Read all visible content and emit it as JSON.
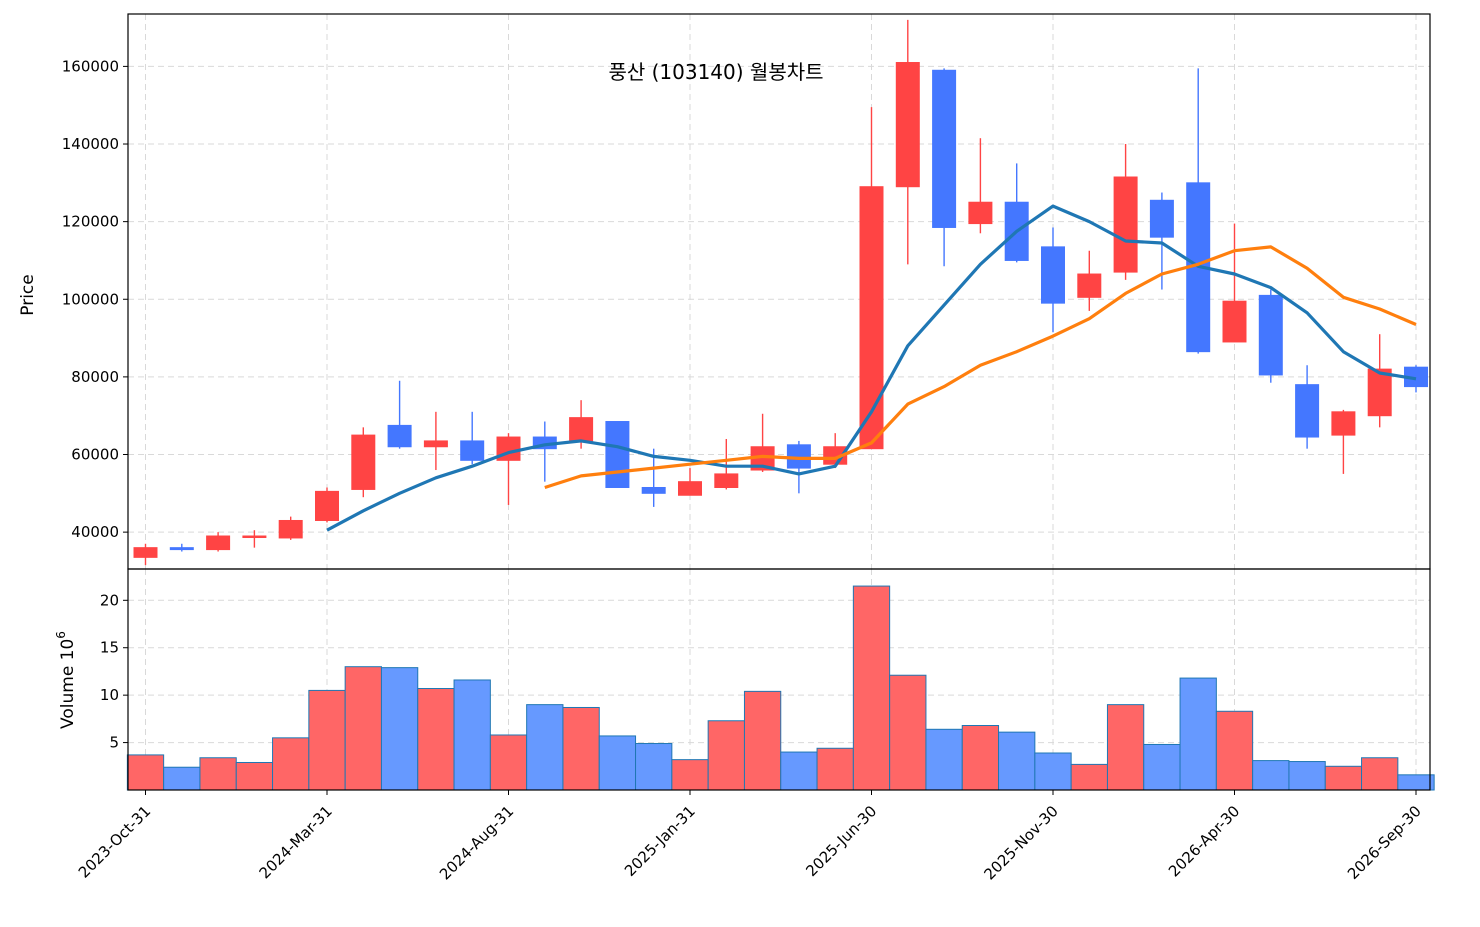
{
  "chart_data": {
    "type": "candlestick",
    "title": "풍산 (103140) 월봉차트",
    "ylabel": "Price",
    "volume_label": "Volume",
    "volume_unit": "10",
    "volume_unit_exp": "6",
    "colors": {
      "up": "#ff4444",
      "down": "#4477ff",
      "vol_up": "#ff6666",
      "vol_down": "#6699ff",
      "ma_short": "#1f77b4",
      "ma_long": "#ff7f0e"
    },
    "x_tick_labels": [
      "2023-Oct-31",
      "2024-Mar-31",
      "2024-Aug-31",
      "2025-Jan-31",
      "2025-Jun-30",
      "2025-Nov-30",
      "2026-Apr-30",
      "2026-Sep-30"
    ],
    "x_tick_indices": [
      0,
      5,
      10,
      15,
      20,
      25,
      30,
      35
    ],
    "y_ticks": [
      40000,
      60000,
      80000,
      100000,
      120000,
      140000,
      160000
    ],
    "ylim": [
      30500,
      173500
    ],
    "volume_ticks": [
      5,
      10,
      15,
      20
    ],
    "volume_ylim": [
      0,
      23.3
    ],
    "grid": true,
    "candles": [
      {
        "o": 33500,
        "h": 37000,
        "l": 31500,
        "c": 36000
      },
      {
        "o": 36000,
        "h": 37000,
        "l": 35000,
        "c": 35500
      },
      {
        "o": 35500,
        "h": 40000,
        "l": 35000,
        "c": 39000
      },
      {
        "o": 39000,
        "h": 40500,
        "l": 36000,
        "c": 39000
      },
      {
        "o": 38500,
        "h": 44000,
        "l": 38000,
        "c": 43000
      },
      {
        "o": 43000,
        "h": 51500,
        "l": 42500,
        "c": 50500
      },
      {
        "o": 51000,
        "h": 67000,
        "l": 49000,
        "c": 65000
      },
      {
        "o": 67500,
        "h": 79000,
        "l": 61500,
        "c": 62000
      },
      {
        "o": 62000,
        "h": 71000,
        "l": 56000,
        "c": 63500
      },
      {
        "o": 63500,
        "h": 71000,
        "l": 57500,
        "c": 58500
      },
      {
        "o": 58500,
        "h": 65500,
        "l": 47000,
        "c": 64500
      },
      {
        "o": 64500,
        "h": 68500,
        "l": 53000,
        "c": 61500
      },
      {
        "o": 63500,
        "h": 74000,
        "l": 61500,
        "c": 69500
      },
      {
        "o": 68500,
        "h": 68500,
        "l": 51500,
        "c": 51500
      },
      {
        "o": 51500,
        "h": 61500,
        "l": 46500,
        "c": 50000
      },
      {
        "o": 49500,
        "h": 56500,
        "l": 49500,
        "c": 53000
      },
      {
        "o": 51500,
        "h": 64000,
        "l": 51000,
        "c": 55000
      },
      {
        "o": 56000,
        "h": 70500,
        "l": 55500,
        "c": 62000
      },
      {
        "o": 62500,
        "h": 63500,
        "l": 50000,
        "c": 56500
      },
      {
        "o": 57500,
        "h": 65500,
        "l": 56500,
        "c": 62000
      },
      {
        "o": 61500,
        "h": 149500,
        "l": 61500,
        "c": 129000
      },
      {
        "o": 129000,
        "h": 172000,
        "l": 109000,
        "c": 161000
      },
      {
        "o": 159000,
        "h": 159500,
        "l": 108500,
        "c": 118500
      },
      {
        "o": 119500,
        "h": 141500,
        "l": 117000,
        "c": 125000
      },
      {
        "o": 125000,
        "h": 135000,
        "l": 109500,
        "c": 110000
      },
      {
        "o": 113500,
        "h": 118500,
        "l": 91500,
        "c": 99000
      },
      {
        "o": 100500,
        "h": 112500,
        "l": 97000,
        "c": 106500
      },
      {
        "o": 107000,
        "h": 140000,
        "l": 105000,
        "c": 131500
      },
      {
        "o": 125500,
        "h": 127500,
        "l": 102500,
        "c": 116000
      },
      {
        "o": 130000,
        "h": 159500,
        "l": 86000,
        "c": 86500
      },
      {
        "o": 89000,
        "h": 119500,
        "l": 89000,
        "c": 99500
      },
      {
        "o": 101000,
        "h": 102500,
        "l": 78500,
        "c": 80500
      },
      {
        "o": 78000,
        "h": 83000,
        "l": 61500,
        "c": 64500
      },
      {
        "o": 65000,
        "h": 71500,
        "l": 55000,
        "c": 71000
      },
      {
        "o": 70000,
        "h": 91000,
        "l": 67000,
        "c": 82000
      },
      {
        "o": 82500,
        "h": 83000,
        "l": 76000,
        "c": 77500
      }
    ],
    "volume": [
      3.7,
      2.4,
      3.4,
      2.9,
      5.5,
      10.5,
      13.0,
      12.9,
      10.7,
      11.6,
      5.8,
      9.0,
      8.7,
      5.7,
      4.9,
      3.2,
      7.3,
      10.4,
      4.0,
      4.4,
      21.5,
      12.1,
      6.4,
      6.8,
      6.1,
      3.9,
      2.7,
      9.0,
      4.8,
      11.8,
      8.3,
      3.1,
      3.0,
      2.5,
      3.4,
      1.6
    ],
    "series": [
      {
        "key": "ma_short",
        "start": 5,
        "values": [
          40500,
          45500,
          50000,
          54000,
          57000,
          60500,
          62500,
          63500,
          62000,
          59500,
          58500,
          57000,
          57000,
          55000,
          57000,
          71000,
          88000,
          98500,
          109000,
          117500,
          124000,
          120000,
          115000,
          114500,
          108500,
          106500,
          103000,
          96500,
          86500,
          81000,
          79500
        ]
      },
      {
        "key": "ma_long",
        "start": 11,
        "values": [
          51500,
          54500,
          55500,
          56500,
          57500,
          58500,
          59500,
          59000,
          59000,
          63000,
          73000,
          77500,
          83000,
          86500,
          90500,
          95000,
          101500,
          106500,
          109000,
          112500,
          113500,
          108000,
          100500,
          97500,
          93500
        ]
      }
    ]
  }
}
